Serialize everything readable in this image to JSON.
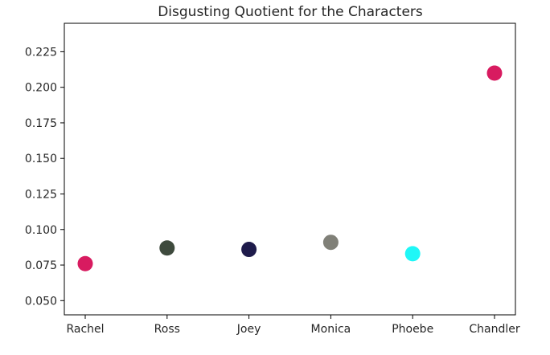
{
  "chart_data": {
    "type": "scatter",
    "title": "Disgusting Quotient for the Characters",
    "xlabel": "",
    "ylabel": "",
    "categories": [
      "Rachel",
      "Ross",
      "Joey",
      "Monica",
      "Phoebe",
      "Chandler"
    ],
    "values": [
      0.076,
      0.087,
      0.086,
      0.091,
      0.083,
      0.21
    ],
    "colors": [
      "#d81b60",
      "#3e4a3d",
      "#1e1b4b",
      "#808078",
      "#1ff7f7",
      "#d81b60"
    ],
    "ylim": [
      0.04,
      0.245
    ],
    "yticks": [
      0.05,
      0.075,
      0.1,
      0.125,
      0.15,
      0.175,
      0.2,
      0.225
    ],
    "ytick_labels": [
      "0.050",
      "0.075",
      "0.100",
      "0.125",
      "0.150",
      "0.175",
      "0.200",
      "0.225"
    ],
    "grid": false,
    "legend": "none"
  }
}
